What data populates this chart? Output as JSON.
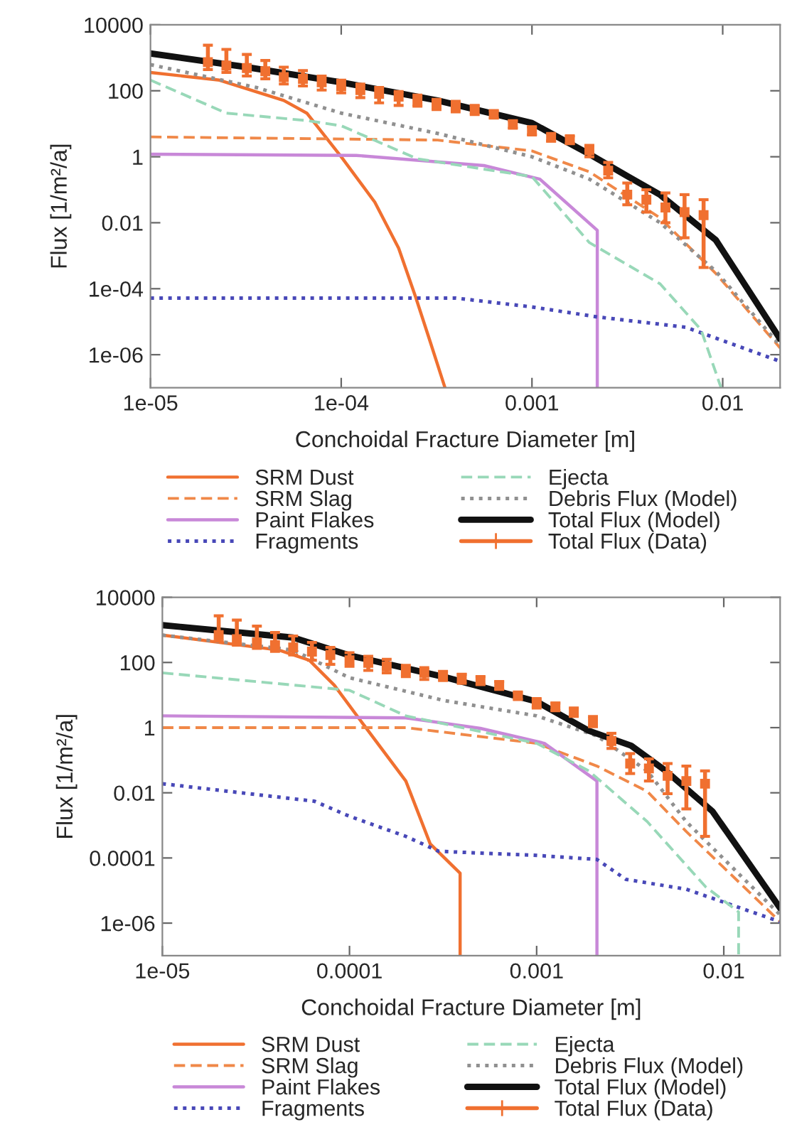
{
  "chart_data": [
    {
      "type": "line",
      "xlabel": "Conchoidal Fracture Diameter [m]",
      "ylabel": "Flux [1/m²/a]",
      "log": "xy",
      "grid": false,
      "legend": "bottom",
      "xlim": [
        1e-05,
        0.02
      ],
      "ylim": [
        1e-07,
        10000
      ],
      "xticks": [
        {
          "value": 1e-05,
          "label": "1e-05"
        },
        {
          "value": 0.0001,
          "label": "1e-04"
        },
        {
          "value": 0.001,
          "label": "0.001"
        },
        {
          "value": 0.01,
          "label": "0.01"
        }
      ],
      "yticks": [
        {
          "value": 1e-06,
          "label": "1e-06"
        },
        {
          "value": 0.0001,
          "label": "1e-04"
        },
        {
          "value": 0.01,
          "label": "0.01"
        },
        {
          "value": 1,
          "label": "1"
        },
        {
          "value": 100,
          "label": "100"
        },
        {
          "value": 10000,
          "label": "10000"
        }
      ],
      "series": [
        {
          "name": "SRM Dust",
          "color": "#f07030",
          "line_style": "solid",
          "x": [
            1e-05,
            2.3e-05,
            5e-05,
            6.6e-05,
            0.0001,
            0.00015,
            0.0002,
            0.000245,
            0.000285,
            0.00035
          ],
          "values": [
            360,
            210,
            51,
            21,
            1.0,
            0.042,
            0.0017,
            5.8e-05,
            4e-06,
            1e-07
          ]
        },
        {
          "name": "SRM Slag",
          "color": "#f08848",
          "line_style": "dashed",
          "x": [
            1e-05,
            0.00032,
            0.001,
            0.002,
            0.0047,
            0.0092,
            0.02
          ],
          "values": [
            4,
            3.2,
            1.5,
            0.35,
            0.014,
            0.00029,
            1.6e-06
          ]
        },
        {
          "name": "Paint Flakes",
          "color": "#c888d8",
          "line_style": "solid",
          "x": [
            1e-05,
            0.00012,
            0.00056,
            0.0011,
            0.0022,
            0.0022
          ],
          "values": [
            1.2,
            1.1,
            0.54,
            0.21,
            0.0059,
            1e-07
          ]
        },
        {
          "name": "Fragments",
          "color": "#4848b8",
          "line_style": "dotted",
          "x": [
            1e-05,
            0.0004,
            0.001,
            0.0022,
            0.0064,
            0.02
          ],
          "values": [
            5.2e-05,
            5.2e-05,
            2.8e-05,
            1.4e-05,
            6.8e-06,
            6.3e-07
          ]
        },
        {
          "name": "Ejecta",
          "color": "#98d8b8",
          "line_style": "dashed",
          "x": [
            1e-05,
            2.5e-05,
            6.6e-05,
            0.0001,
            0.00025,
            0.001,
            0.002,
            0.0047,
            0.0077,
            0.0098
          ],
          "values": [
            210,
            21,
            12.5,
            8.7,
            0.87,
            0.25,
            0.0025,
            0.00014,
            5.7e-06,
            1e-07
          ]
        },
        {
          "name": "Debris Flux (Model)",
          "color": "#909090",
          "line_style": "dotted",
          "x": [
            1e-05,
            3.6e-05,
            0.0001,
            0.00032,
            0.001,
            0.002,
            0.0047,
            0.0092,
            0.02
          ],
          "values": [
            620,
            125,
            21,
            5.1,
            1.0,
            0.21,
            0.01,
            0.00034,
            1.9e-06
          ]
        },
        {
          "name": "Total Flux (Model)",
          "color": "#111111",
          "line_style": "solid",
          "x": [
            1e-05,
            3.2e-05,
            0.0001,
            0.00032,
            0.001,
            0.002,
            0.0032,
            0.0047,
            0.0092,
            0.02
          ],
          "values": [
            1350,
            520,
            180,
            51,
            10.5,
            1.2,
            0.25,
            0.07,
            0.003,
            3e-06
          ]
        },
        {
          "name": "Total Flux (Data)",
          "type": "scatter",
          "marker": "square",
          "color": "#f07030",
          "x": [
            2e-05,
            2.5e-05,
            3.2e-05,
            4e-05,
            5e-05,
            6.3e-05,
            7.9e-05,
            0.0001,
            0.000126,
            0.000158,
            0.0002,
            0.000251,
            0.000316,
            0.000398,
            0.000501,
            0.000631,
            0.000794,
            0.001,
            0.00126,
            0.00158,
            0.002,
            0.00251,
            0.00316,
            0.00398,
            0.00501,
            0.00631,
            0.00794
          ],
          "values": [
            740,
            580,
            490,
            390,
            260,
            230,
            180,
            140,
            105,
            81,
            66,
            48,
            39,
            34,
            27,
            19,
            9.8,
            6.1,
            3.8,
            3.2,
            1.6,
            0.38,
            0.071,
            0.05,
            0.029,
            0.021,
            0.017
          ],
          "errors": [
            [
              440,
              2400
            ],
            [
              360,
              1800
            ],
            [
              280,
              1260
            ],
            [
              230,
              830
            ],
            [
              160,
              520
            ],
            [
              140,
              410
            ],
            [
              105,
              280
            ],
            [
              87,
              210
            ],
            [
              62,
              160
            ],
            [
              43,
              126
            ],
            [
              36,
              95
            ],
            [
              34,
              74
            ],
            [
              27,
              55
            ],
            [
              23,
              48
            ],
            [
              19,
              36
            ],
            [
              15,
              25
            ],
            [
              7.3,
              12.3
            ],
            [
              4.6,
              8.1
            ],
            [
              3.0,
              5.1
            ],
            [
              2.5,
              4.3
            ],
            [
              1.0,
              2.2
            ],
            [
              0.23,
              0.67
            ],
            [
              0.035,
              0.16
            ],
            [
              0.021,
              0.1
            ],
            [
              0.01,
              0.08
            ],
            [
              0.0035,
              0.071
            ],
            [
              0.00044,
              0.05
            ]
          ]
        }
      ]
    },
    {
      "type": "line",
      "xlabel": "Conchoidal Fracture Diameter [m]",
      "ylabel": "Flux [1/m²/a]",
      "log": "xy",
      "grid": false,
      "legend": "bottom",
      "xlim": [
        1e-05,
        0.02
      ],
      "ylim": [
        1e-07,
        10000
      ],
      "xticks": [
        {
          "value": 1e-05,
          "label": "1e-05"
        },
        {
          "value": 0.0001,
          "label": "0.0001"
        },
        {
          "value": 0.001,
          "label": "0.001"
        },
        {
          "value": 0.01,
          "label": "0.01"
        }
      ],
      "yticks": [
        {
          "value": 1e-06,
          "label": "1e-06"
        },
        {
          "value": 0.0001,
          "label": "0.0001"
        },
        {
          "value": 0.01,
          "label": "0.01"
        },
        {
          "value": 1,
          "label": "1"
        },
        {
          "value": 100,
          "label": "100"
        },
        {
          "value": 10000,
          "label": "10000"
        }
      ],
      "series": [
        {
          "name": "SRM Dust",
          "color": "#f07030",
          "line_style": "solid",
          "x": [
            1e-05,
            4.2e-05,
            6.1e-05,
            8.3e-05,
            0.00012,
            0.0002,
            0.00027,
            0.00039,
            0.00039
          ],
          "values": [
            690,
            240,
            117,
            20,
            1.15,
            0.023,
            0.00027,
            3.4e-05,
            1e-07
          ]
        },
        {
          "name": "SRM Slag",
          "color": "#f08848",
          "line_style": "dashed",
          "x": [
            1e-05,
            0.0002,
            0.001,
            0.0021,
            0.0039,
            0.0063,
            0.02
          ],
          "values": [
            1.0,
            1.0,
            0.33,
            0.066,
            0.011,
            0.00065,
            1.1e-06
          ]
        },
        {
          "name": "Paint Flakes",
          "color": "#c888d8",
          "line_style": "solid",
          "x": [
            1e-05,
            0.0002,
            0.0005,
            0.0011,
            0.0021,
            0.0021
          ],
          "values": [
            2.3,
            2.0,
            0.95,
            0.33,
            0.023,
            1e-07
          ]
        },
        {
          "name": "Fragments",
          "color": "#4848b8",
          "line_style": "dotted",
          "x": [
            1e-05,
            6.5e-05,
            0.0001,
            0.0002,
            0.0003,
            0.001,
            0.0021,
            0.003,
            0.0063,
            0.02
          ],
          "values": [
            0.019,
            0.0055,
            0.0019,
            0.00046,
            0.00016,
            0.00012,
            9e-05,
            2.2e-05,
            1.1e-05,
            1.1e-06
          ]
        },
        {
          "name": "Ejecta",
          "color": "#98d8b8",
          "line_style": "dashed",
          "x": [
            1e-05,
            0.0001,
            0.0002,
            0.001,
            0.0019,
            0.0039,
            0.008,
            0.012,
            0.012
          ],
          "values": [
            48,
            14,
            2.3,
            0.33,
            0.047,
            0.0013,
            1.3e-05,
            2.2e-06,
            1e-07
          ]
        },
        {
          "name": "Debris Flux (Model)",
          "color": "#909090",
          "line_style": "dotted",
          "x": [
            1e-05,
            5e-05,
            0.0001,
            0.00032,
            0.001,
            0.0021,
            0.0039,
            0.0063,
            0.02
          ],
          "values": [
            690,
            240,
            34,
            6.8,
            2.3,
            0.56,
            0.047,
            0.0013,
            1.8e-06
          ]
        },
        {
          "name": "Total Flux (Model)",
          "color": "#111111",
          "line_style": "solid",
          "x": [
            1e-05,
            5e-05,
            0.0001,
            0.00032,
            0.001,
            0.0019,
            0.0032,
            0.0049,
            0.0087,
            0.02
          ],
          "values": [
            1400,
            580,
            165,
            36,
            6.3,
            0.8,
            0.28,
            0.047,
            0.0027,
            2.9e-06
          ]
        },
        {
          "name": "Total Flux (Data)",
          "type": "scatter",
          "marker": "square",
          "color": "#f07030",
          "x": [
            2e-05,
            2.5e-05,
            3.2e-05,
            4e-05,
            5e-05,
            6.3e-05,
            7.9e-05,
            0.0001,
            0.000126,
            0.000158,
            0.0002,
            0.000251,
            0.000316,
            0.000398,
            0.000501,
            0.000631,
            0.000794,
            0.001,
            0.00126,
            0.00158,
            0.002,
            0.00251,
            0.00316,
            0.00398,
            0.00501,
            0.00631,
            0.00794
          ],
          "values": [
            690,
            520,
            410,
            340,
            290,
            215,
            170,
            117,
            98,
            76,
            57,
            48,
            40,
            34,
            28,
            20,
            9.7,
            5.7,
            4.4,
            3.0,
            1.5,
            0.39,
            0.079,
            0.056,
            0.033,
            0.023,
            0.019
          ],
          "errors": [
            [
              450,
              2700
            ],
            [
              340,
              2000
            ],
            [
              270,
              1300
            ],
            [
              220,
              830
            ],
            [
              170,
              650
            ],
            [
              117,
              410
            ],
            [
              88,
              290
            ],
            [
              76,
              200
            ],
            [
              57,
              155
            ],
            [
              48,
              125
            ],
            [
              37,
              82
            ],
            [
              30,
              69
            ],
            [
              28,
              53
            ],
            [
              23,
              43
            ],
            [
              21,
              37
            ],
            [
              15,
              26
            ],
            [
              7.3,
              12
            ],
            [
              4.0,
              7.8
            ],
            [
              3.3,
              5.7
            ],
            [
              2.2,
              4.0
            ],
            [
              1.07,
              2.2
            ],
            [
              0.23,
              0.67
            ],
            [
              0.039,
              0.16
            ],
            [
              0.023,
              0.11
            ],
            [
              0.0094,
              0.079
            ],
            [
              0.0032,
              0.066
            ],
            [
              0.00046,
              0.047
            ]
          ]
        }
      ]
    }
  ]
}
